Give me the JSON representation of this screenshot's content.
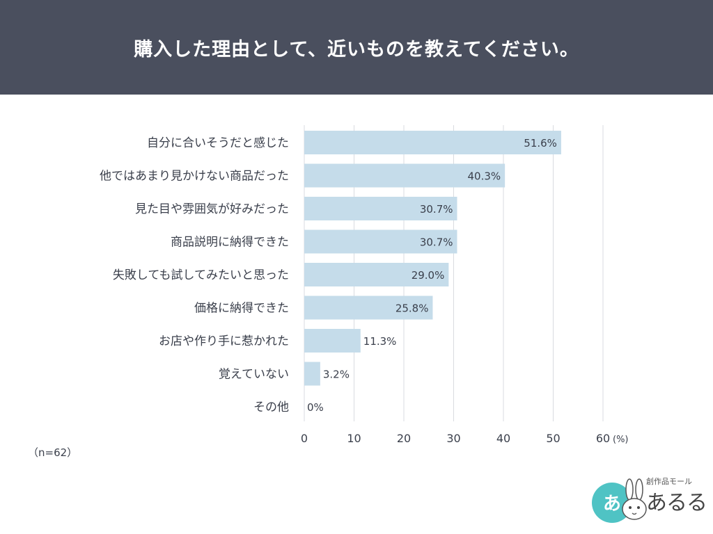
{
  "header": {
    "title": "購入した理由として、近いものを教えてください。"
  },
  "note": "（n=62）",
  "logo": {
    "small_text": "創作品モール",
    "big_text": "あるる",
    "circle_text": "あ"
  },
  "colors": {
    "header_bg": "#4a4f5e",
    "bar": "#c5dcea",
    "grid": "#d9dbe0"
  },
  "chart_data": {
    "type": "bar",
    "orientation": "horizontal",
    "categories": [
      "自分に合いそうだと感じた",
      "他ではあまり見かけない商品だった",
      "見た目や雰囲気が好みだった",
      "商品説明に納得できた",
      "失敗しても試してみたいと思った",
      "価格に納得できた",
      "お店や作り手に惹かれた",
      "覚えていない",
      "その他"
    ],
    "values": [
      51.6,
      40.3,
      30.7,
      30.7,
      29.0,
      25.8,
      11.3,
      3.2,
      0
    ],
    "value_labels": [
      "51.6%",
      "40.3%",
      "30.7%",
      "30.7%",
      "29.0%",
      "25.8%",
      "11.3%",
      "3.2%",
      "0%"
    ],
    "xticks": [
      0,
      10,
      20,
      30,
      40,
      50,
      60
    ],
    "xtick_labels": [
      "0",
      "10",
      "20",
      "30",
      "40",
      "50",
      "60"
    ],
    "xunit": "(%)",
    "xlim": [
      0,
      60
    ],
    "grid": true
  }
}
